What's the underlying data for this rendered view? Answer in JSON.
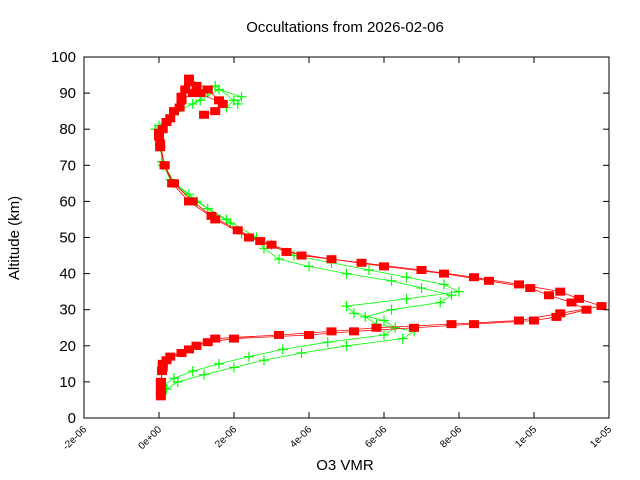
{
  "chart_data": {
    "type": "line",
    "title": "Occultations from 2026-02-06",
    "xlabel": "O3 VMR",
    "ylabel": "Altitude (km)",
    "xlim": [
      -2e-06,
      1.2e-05
    ],
    "ylim": [
      0,
      100
    ],
    "grid": false,
    "legend": "none",
    "x_tick_labels": [
      "-2e-06",
      "0e+00",
      "2e-06",
      "4e-06",
      "6e-06",
      "8e-06",
      "1e-05",
      "1e-05"
    ],
    "x_tick_values": [
      -2e-06,
      0,
      2e-06,
      4e-06,
      6e-06,
      8e-06,
      1e-05,
      1.2e-05
    ],
    "y_tick_labels": [
      "0",
      "10",
      "20",
      "30",
      "40",
      "50",
      "60",
      "70",
      "80",
      "90",
      "100"
    ],
    "y_tick_values": [
      0,
      10,
      20,
      30,
      40,
      50,
      60,
      70,
      80,
      90,
      100
    ],
    "series": [
      {
        "color": "#ff0000",
        "marker": "filled-square",
        "altitude": [
          6,
          8,
          10,
          13,
          15,
          17,
          19,
          20,
          22,
          23,
          24,
          25,
          26,
          27,
          29,
          31,
          33,
          35,
          37,
          39,
          41,
          43,
          45,
          48,
          50,
          55,
          60,
          65,
          70,
          75,
          78,
          80,
          83,
          86,
          89,
          91,
          93,
          90,
          87,
          85,
          84
        ],
        "vmr": [
          5e-08,
          5e-08,
          5e-08,
          8e-08,
          1e-07,
          3e-07,
          8e-07,
          1e-06,
          1.5e-06,
          3.2e-06,
          4.6e-06,
          5.8e-06,
          7.8e-06,
          9.6e-06,
          1.07e-05,
          1.18e-05,
          1.12e-05,
          1.07e-05,
          9.6e-06,
          8.4e-06,
          7e-06,
          5.4e-06,
          3.8e-06,
          3e-06,
          2.4e-06,
          1.5e-06,
          8e-07,
          3.5e-07,
          1.5e-07,
          3e-08,
          0,
          1e-07,
          3e-07,
          5.5e-07,
          6e-07,
          7e-07,
          8e-07,
          1.1e-06,
          1.7e-06,
          1.5e-06,
          1.2e-06
        ]
      },
      {
        "color": "#ff0000",
        "marker": "filled-square",
        "altitude": [
          7,
          10,
          14,
          16,
          18,
          20,
          21,
          22,
          23,
          24,
          25,
          26,
          27,
          28,
          30,
          32,
          34,
          36,
          38,
          40,
          42,
          44,
          46,
          49,
          52,
          56,
          60,
          65,
          70,
          76,
          79,
          82,
          85,
          88,
          90,
          92,
          94,
          91,
          88
        ],
        "vmr": [
          5e-08,
          5e-08,
          1e-07,
          2e-07,
          6e-07,
          1e-06,
          1.3e-06,
          2e-06,
          4e-06,
          5.2e-06,
          6.8e-06,
          8.4e-06,
          1e-05,
          1.06e-05,
          1.14e-05,
          1.1e-05,
          1.04e-05,
          9.9e-06,
          8.8e-06,
          7.6e-06,
          6e-06,
          4.6e-06,
          3.4e-06,
          2.7e-06,
          2.1e-06,
          1.4e-06,
          9e-07,
          4e-07,
          1.5e-07,
          3e-08,
          0,
          2e-07,
          4e-07,
          6e-07,
          9e-07,
          1e-06,
          8e-07,
          1.3e-06,
          1.6e-06
        ]
      },
      {
        "color": "#00ff00",
        "marker": "plus",
        "altitude": [
          8,
          10,
          12,
          14,
          16,
          18,
          20,
          22,
          24,
          26,
          28,
          30,
          32,
          34,
          36,
          38,
          40,
          42,
          44,
          47,
          50,
          55,
          60,
          65,
          70,
          75,
          80,
          84,
          87,
          90,
          92,
          88,
          86
        ],
        "vmr": [
          2e-07,
          5e-07,
          1.2e-06,
          2e-06,
          2.8e-06,
          3.8e-06,
          5e-06,
          6.5e-06,
          6.8e-06,
          5.8e-06,
          5.5e-06,
          6.2e-06,
          7.5e-06,
          7.8e-06,
          7e-06,
          6.2e-06,
          5e-06,
          4e-06,
          3.2e-06,
          2.8e-06,
          2.6e-06,
          1.8e-06,
          1e-06,
          4e-07,
          1e-07,
          5e-08,
          -1e-07,
          3e-07,
          9e-07,
          1.3e-06,
          1.5e-06,
          2e-06,
          1.8e-06
        ]
      },
      {
        "color": "#00ff00",
        "marker": "plus",
        "altitude": [
          9,
          11,
          13,
          15,
          17,
          19,
          21,
          23,
          25,
          27,
          29,
          31,
          33,
          35,
          37,
          39,
          41,
          43,
          45,
          48,
          51,
          54,
          58,
          62,
          66,
          71,
          77,
          81,
          85,
          88,
          91,
          89,
          87
        ],
        "vmr": [
          1e-07,
          4e-07,
          9e-07,
          1.6e-06,
          2.4e-06,
          3.3e-06,
          4.5e-06,
          6e-06,
          6.3e-06,
          6e-06,
          5.2e-06,
          5e-06,
          6.6e-06,
          8e-06,
          7.6e-06,
          6.6e-06,
          5.6e-06,
          4.6e-06,
          3.6e-06,
          3e-06,
          2.2e-06,
          1.9e-06,
          1.3e-06,
          8e-07,
          3e-07,
          8e-08,
          2e-08,
          0,
          5e-07,
          1.1e-06,
          1.6e-06,
          2.2e-06,
          2.1e-06
        ]
      }
    ]
  }
}
